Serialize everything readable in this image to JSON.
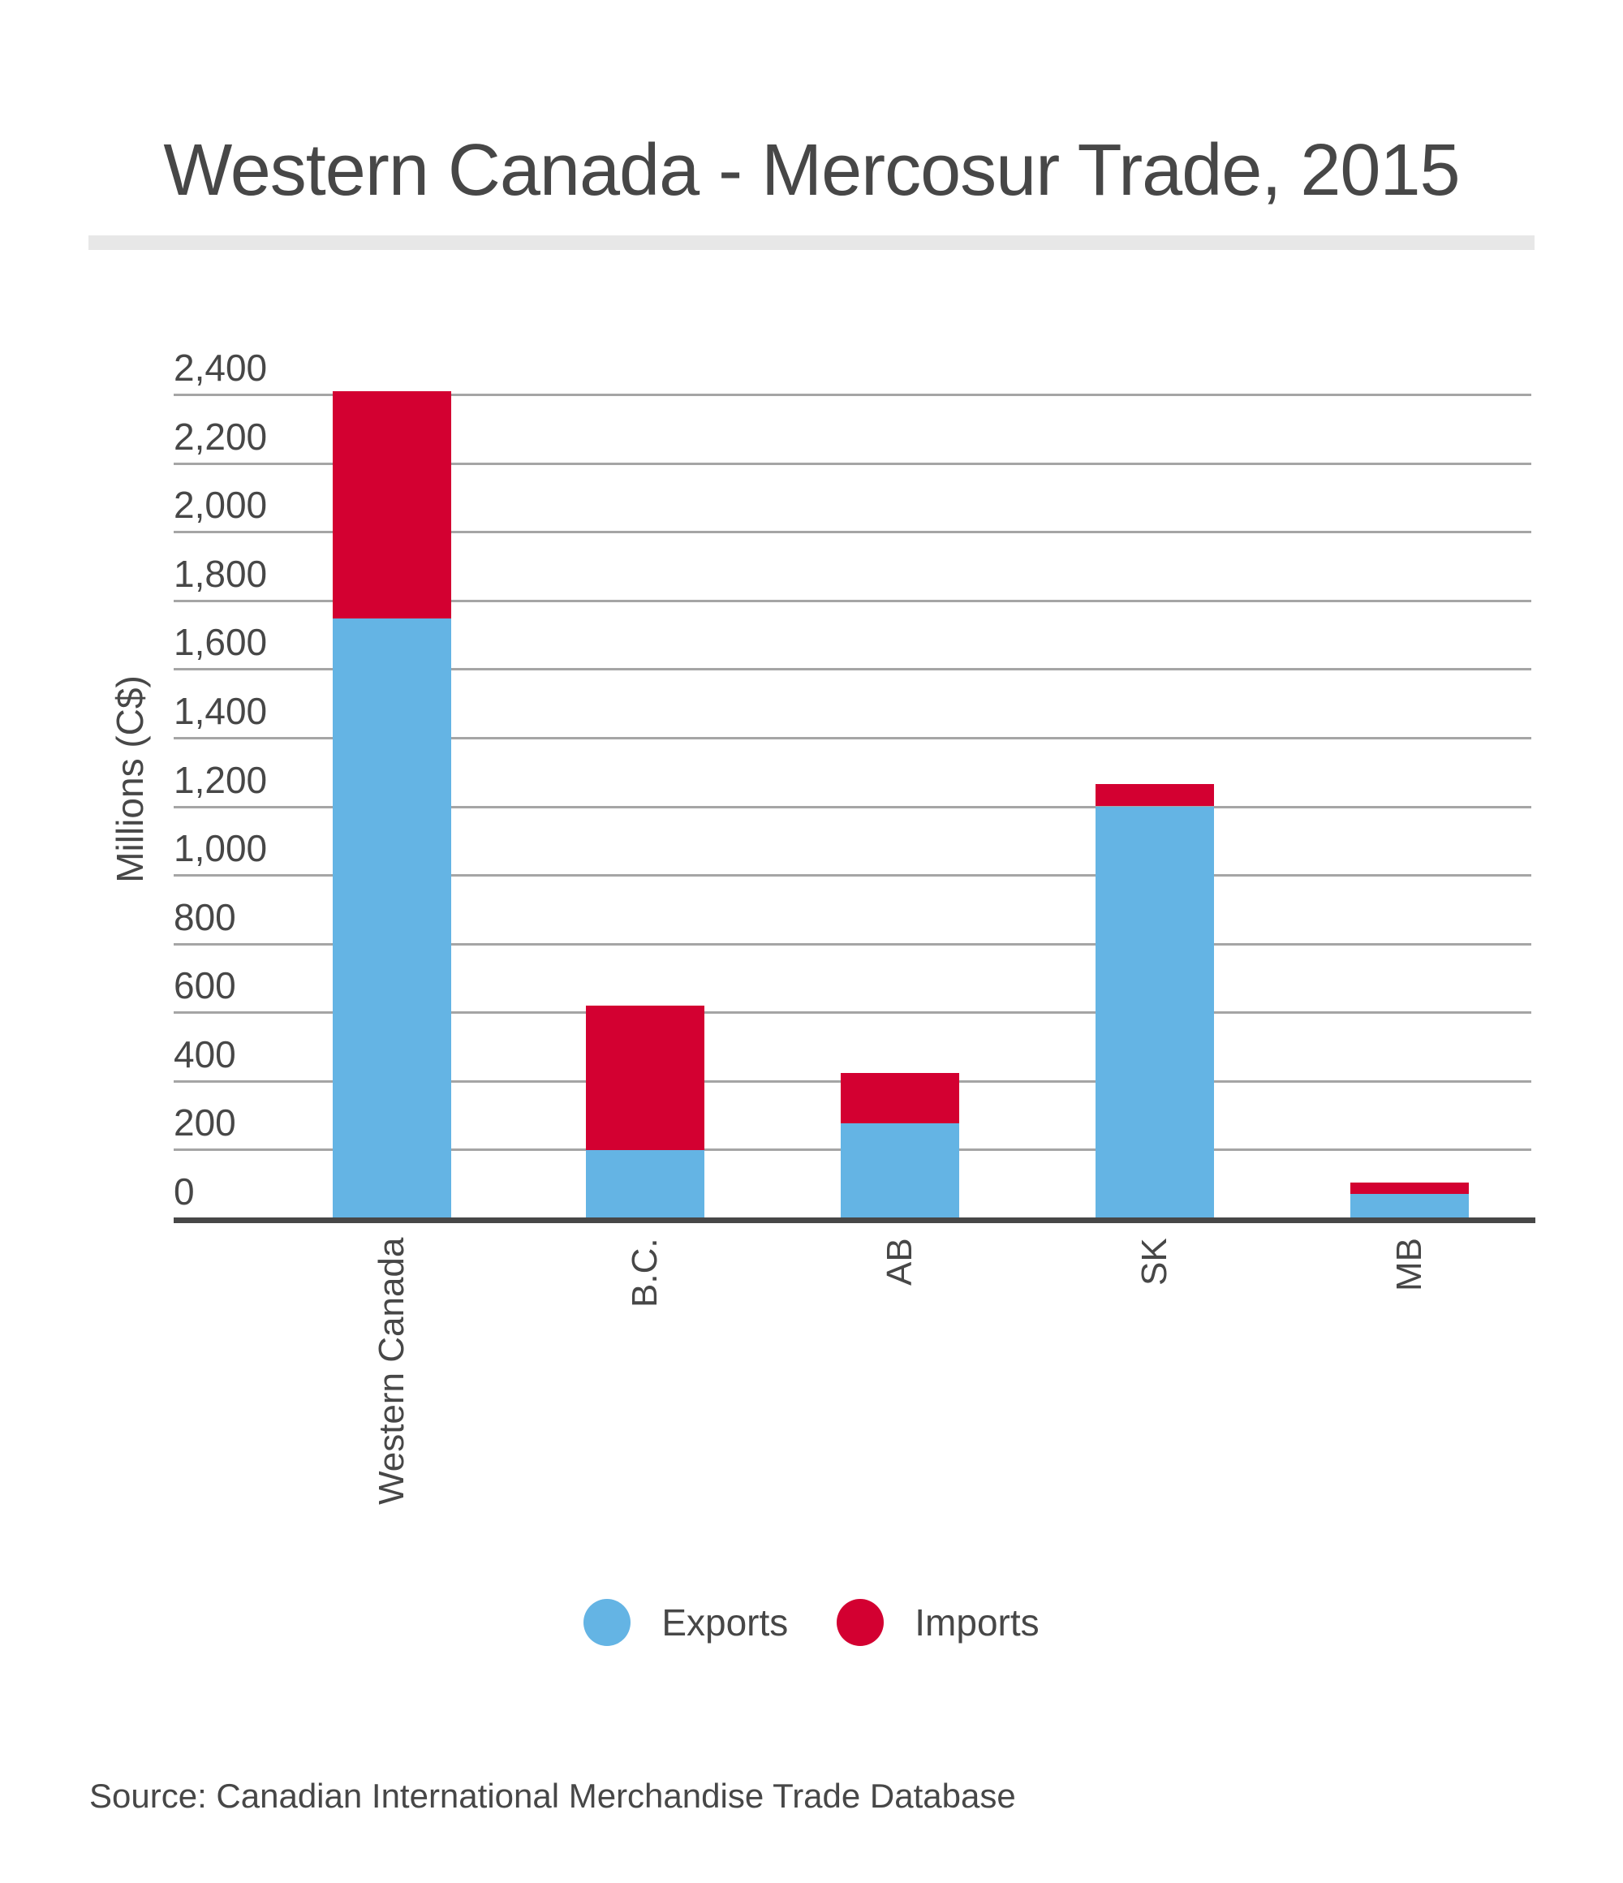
{
  "title": "Western Canada - Mercosur Trade, 2015",
  "y_axis_label": "Millions (C$)",
  "legend": [
    {
      "label": "Exports",
      "color": "#64b4e4",
      "icon": "circle-swatch-icon"
    },
    {
      "label": "Imports",
      "color": "#d30031",
      "icon": "circle-swatch-icon"
    }
  ],
  "source": "Source: Canadian International Merchandise Trade Database",
  "colors": {
    "exports": "#64b4e4",
    "imports": "#d30031",
    "text": "#474747",
    "gridline": "#a5a5a5",
    "axis": "#474747",
    "divider": "#e7e7e7"
  },
  "chart_data": {
    "type": "bar",
    "stacked": true,
    "title": "Western Canada - Mercosur Trade, 2015",
    "xlabel": "",
    "ylabel": "Millions (C$)",
    "categories": [
      "Western Canada",
      "B.C.",
      "AB",
      "SK",
      "MB"
    ],
    "series": [
      {
        "name": "Exports",
        "color": "#64b4e4",
        "values": [
          1747,
          199,
          277,
          1200,
          71
        ]
      },
      {
        "name": "Imports",
        "color": "#d30031",
        "values": [
          663,
          420,
          146,
          65,
          33
        ]
      }
    ],
    "ylim": [
      0,
      2400
    ],
    "yticks": [
      0,
      200,
      400,
      600,
      800,
      1000,
      1200,
      1400,
      1600,
      1800,
      2000,
      2200,
      2400
    ],
    "ytick_labels": [
      "0",
      "200",
      "400",
      "600",
      "800",
      "1,000",
      "1,200",
      "1,400",
      "1,600",
      "1,800",
      "2,000",
      "2,200",
      "2,400"
    ],
    "grid": true,
    "legend_position": "bottom",
    "x_label_rotation": -90,
    "source": "Source: Canadian International Merchandise Trade Database"
  }
}
